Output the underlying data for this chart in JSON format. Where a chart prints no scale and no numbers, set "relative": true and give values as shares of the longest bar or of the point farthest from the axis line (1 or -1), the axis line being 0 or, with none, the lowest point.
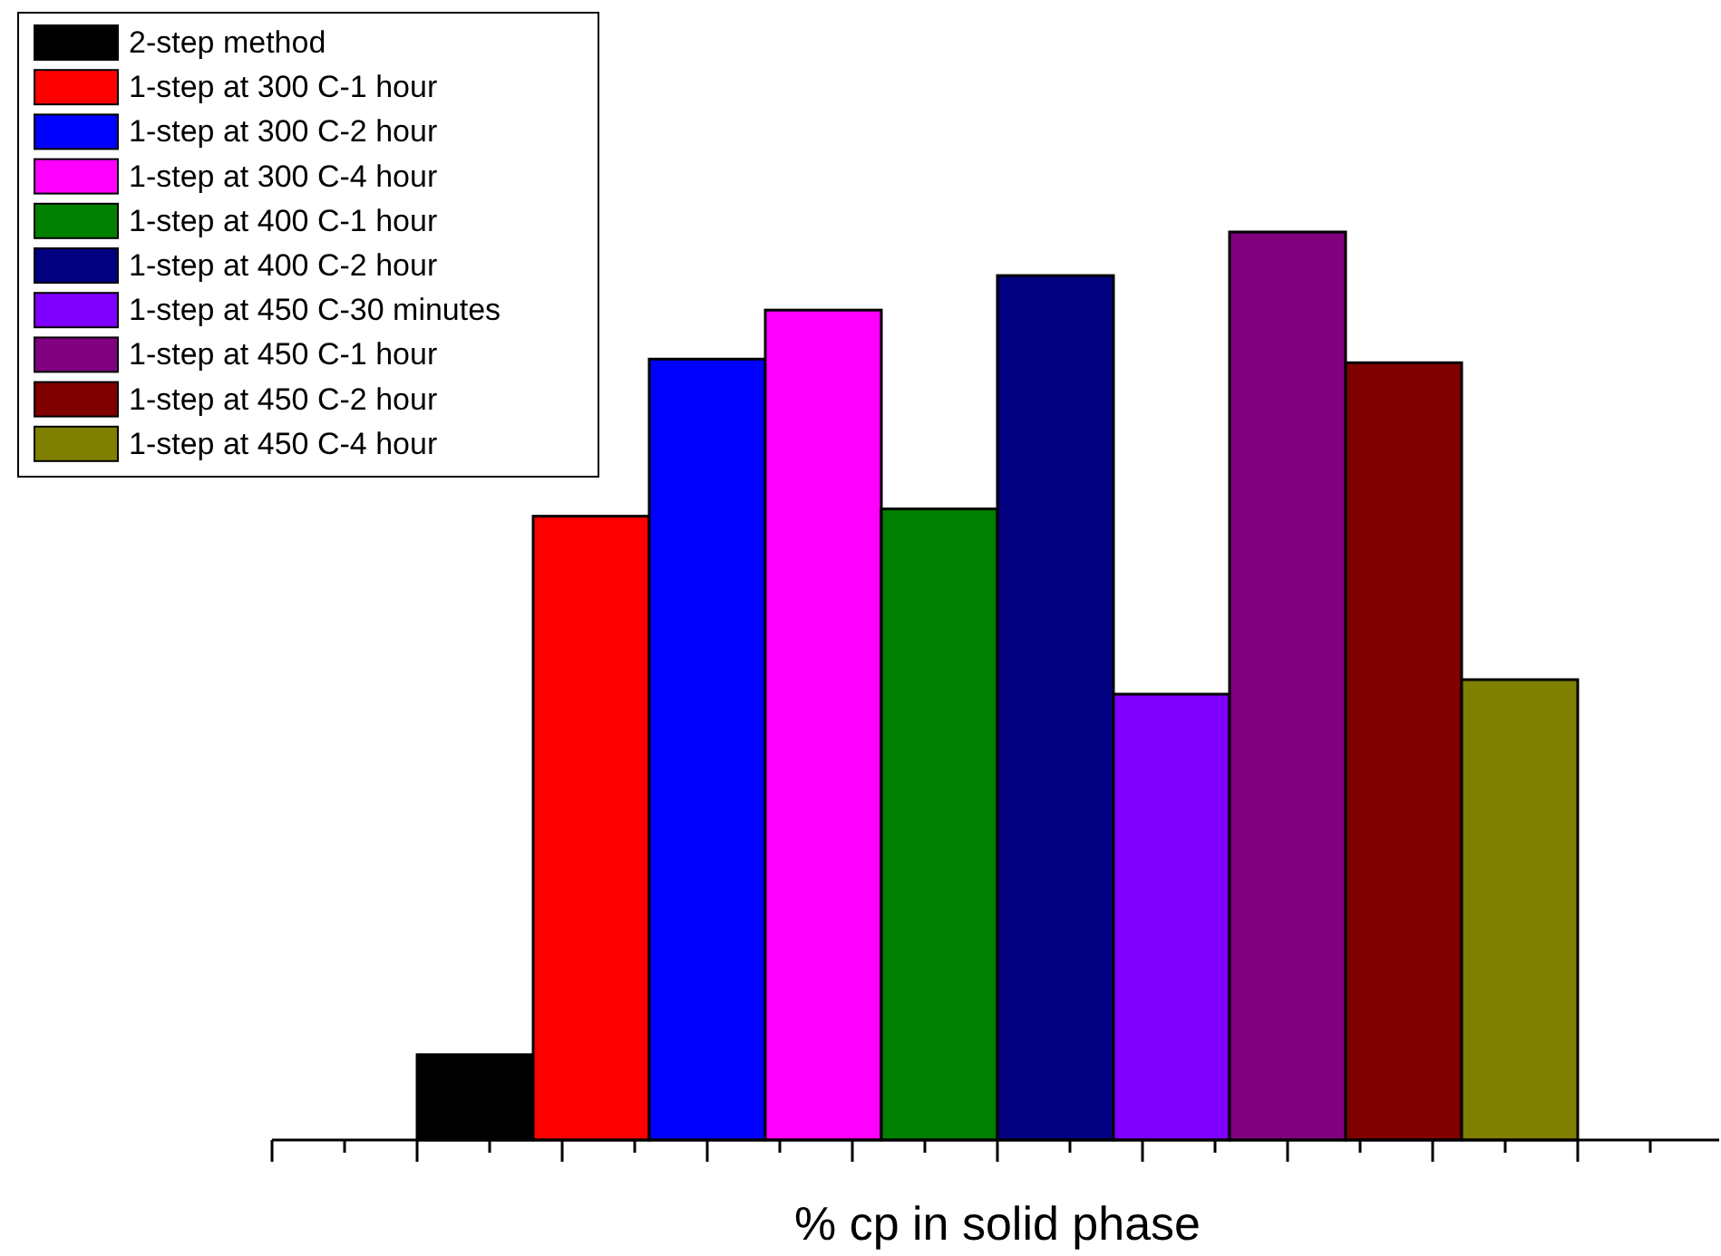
{
  "chart_data": {
    "type": "bar",
    "relative": true,
    "xlabel": "% cp in solid phase",
    "legend": "top left",
    "categories": [
      null
    ],
    "series": [
      {
        "name": "2-step method",
        "color": "#000000",
        "values": [
          0.094
        ]
      },
      {
        "name": "1-step at 300 C-1 hour",
        "color": "#ff0000",
        "values": [
          0.687
        ]
      },
      {
        "name": "1-step at 300 C-2 hour",
        "color": "#0000ff",
        "values": [
          0.86
        ]
      },
      {
        "name": "1-step at 300 C-4 hour",
        "color": "#ff00ff",
        "values": [
          0.914
        ]
      },
      {
        "name": "1-step at 400 C-1 hour",
        "color": "#008000",
        "values": [
          0.695
        ]
      },
      {
        "name": "1-step at 400 C-2 hour",
        "color": "#000080",
        "values": [
          0.952
        ]
      },
      {
        "name": "1-step at 450 C-30 minutes",
        "color": "#8000ff",
        "values": [
          0.491
        ]
      },
      {
        "name": "1-step at 450 C-1 hour",
        "color": "#800080",
        "values": [
          1
        ]
      },
      {
        "name": "1-step at 450 C-2 hour",
        "color": "#800000",
        "values": [
          0.856
        ]
      },
      {
        "name": "1-step at 450 C-4 hour",
        "color": "#808000",
        "values": [
          0.507
        ]
      }
    ]
  }
}
